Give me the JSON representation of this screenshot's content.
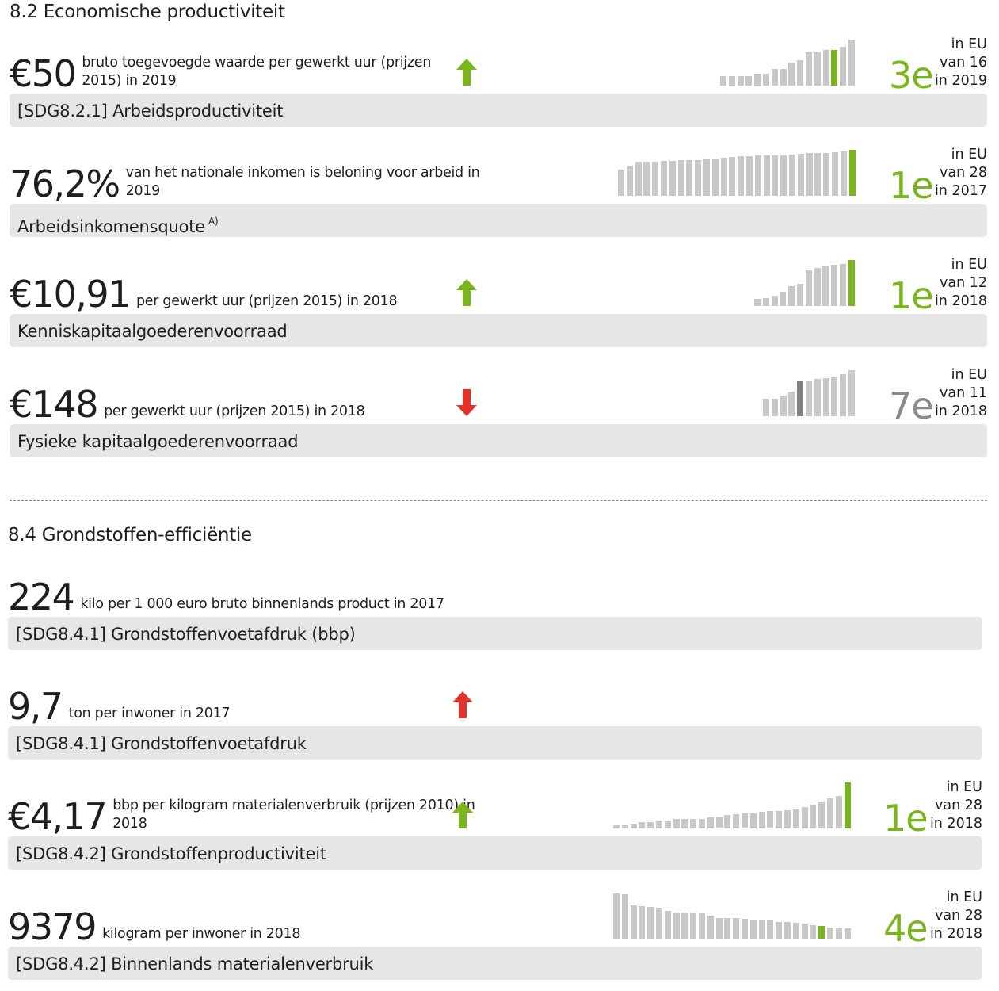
{
  "colors": {
    "green": "#7ab51d",
    "red": "#e2332a",
    "gray": "#c8c8c8",
    "dark": "#808080",
    "rank_gray": "#8a8a8a"
  },
  "sections": [
    {
      "title": "8.2 Economische productiviteit"
    },
    {
      "title": "8.4 Grondstoffen-efficiëntie"
    }
  ],
  "rows": [
    {
      "value": "€50",
      "desc": "bruto toegevoegde waarde per gewerkt uur (prijzen 2015) in 2019",
      "trend": "up",
      "trend_color": "green",
      "label": "[SDG8.2.1] Arbeidsproductiviteit",
      "rank": "3e",
      "rank_color": "green",
      "rank_l1": "in EU",
      "rank_l2": "van 16",
      "rank_l3": "in 2019",
      "bars": [
        12,
        12,
        12,
        12,
        15,
        15,
        21,
        21,
        29,
        32,
        42,
        42,
        45,
        45,
        49,
        58
      ],
      "highlight": 13
    },
    {
      "value": "76,2%",
      "desc": "van het nationale inkomen is beloning voor arbeid in 2019",
      "trend": null,
      "label": "Arbeidsinkomensquote",
      "label_note": "A)",
      "rank": "1e",
      "rank_color": "green",
      "rank_l1": "in EU",
      "rank_l2": "van 28",
      "rank_l3": "in 2017",
      "bars": [
        33,
        38,
        43,
        43,
        43,
        44,
        44,
        45,
        45,
        45,
        46,
        47,
        48,
        49,
        50,
        50,
        51,
        51,
        51,
        51,
        52,
        53,
        54,
        54,
        54,
        55,
        56,
        58
      ],
      "highlight": 27
    },
    {
      "value": "€10,91",
      "desc": "per gewerkt uur (prijzen 2015) in 2018",
      "trend": "up",
      "trend_color": "green",
      "label": "Kenniskapitaalgoederenvoorraad",
      "rank": "1e",
      "rank_color": "green",
      "rank_l1": "in EU",
      "rank_l2": "van 12",
      "rank_l3": "in 2018",
      "bars": [
        9,
        10,
        13,
        18,
        25,
        28,
        45,
        48,
        50,
        52,
        53,
        58
      ],
      "highlight": 11
    },
    {
      "value": "€148",
      "desc": "per gewerkt uur (prijzen 2015) in 2018",
      "trend": "down",
      "trend_color": "red",
      "label": "Fysieke kapitaalgoederenvoorraad",
      "rank": "7e",
      "rank_color": "rank_gray",
      "rank_l1": "in EU",
      "rank_l2": "van 11",
      "rank_l3": "in 2018",
      "bars": [
        22,
        22,
        26,
        31,
        45,
        45,
        47,
        48,
        50,
        53,
        58
      ],
      "highlight": 4,
      "highlight_color": "dark"
    },
    {
      "value": "224",
      "desc": "kilo per 1 000 euro bruto binnenlands product in 2017",
      "trend": null,
      "label": "[SDG8.4.1] Grondstoffenvoetafdruk (bbp)",
      "rank": null
    },
    {
      "value": "9,7",
      "desc": "ton per inwoner in 2017",
      "trend": "up",
      "trend_color": "red",
      "label": "[SDG8.4.1] Grondstoffenvoetafdruk",
      "rank": null
    },
    {
      "value": "€4,17",
      "desc": "bbp per kilogram materialenverbruik (prijzen 2010) in 2018",
      "trend": "up",
      "trend_color": "green",
      "label": "[SDG8.4.2] Grondstoffenproductiviteit",
      "rank": "1e",
      "rank_color": "green",
      "rank_l1": "in EU",
      "rank_l2": "van 28",
      "rank_l3": "in 2018",
      "bars": [
        5,
        5,
        6,
        8,
        8,
        10,
        10,
        12,
        12,
        12,
        12,
        14,
        15,
        17,
        18,
        19,
        19,
        21,
        22,
        22,
        23,
        24,
        27,
        30,
        34,
        38,
        41,
        58
      ],
      "highlight": 27
    },
    {
      "value": "9379",
      "desc": "kilogram per inwoner in 2018",
      "trend": null,
      "label": "[SDG8.4.2] Binnenlands materialenverbruik",
      "rank": "4e",
      "rank_color": "green",
      "rank_l1": "in EU",
      "rank_l2": "van 28",
      "rank_l3": "in 2018",
      "bars": [
        57,
        56,
        42,
        41,
        40,
        39,
        35,
        33,
        33,
        33,
        32,
        29,
        26,
        26,
        26,
        25,
        24,
        24,
        23,
        21,
        21,
        20,
        19,
        17,
        16,
        14,
        14,
        13
      ],
      "highlight": 24
    }
  ]
}
